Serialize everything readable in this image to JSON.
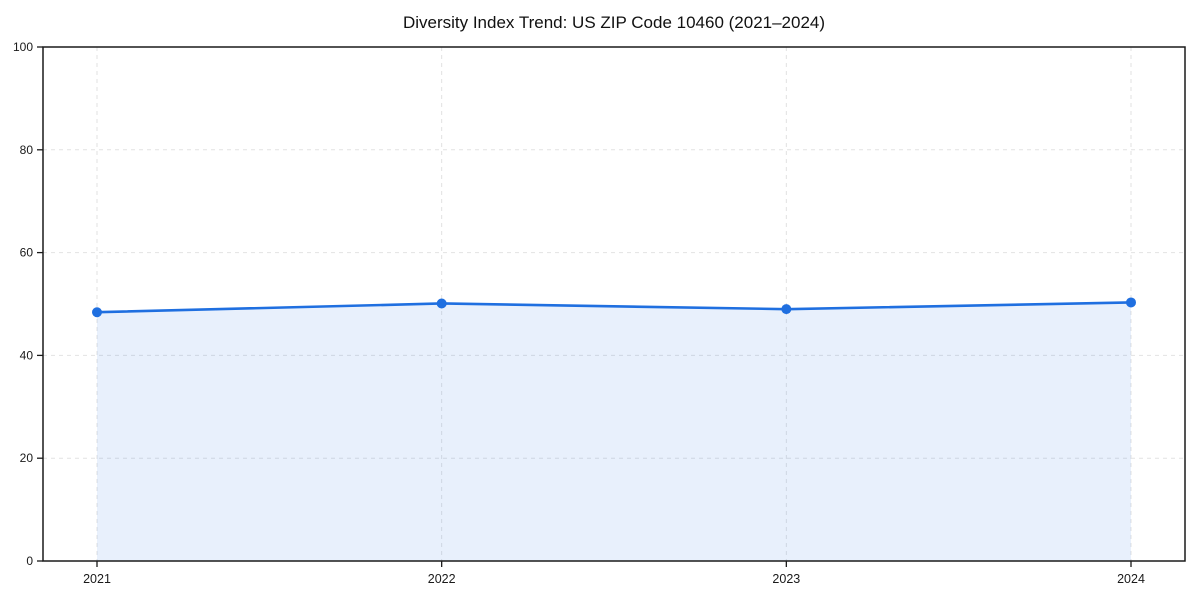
{
  "page": {
    "background": "#ffffff"
  },
  "chart_data": {
    "type": "area",
    "title": "Diversity Index Trend: US ZIP Code 10460 (2021–2024)",
    "categories": [
      "2021",
      "2022",
      "2023",
      "2024"
    ],
    "series": [
      {
        "name": "Diversity Index",
        "values": [
          48.4,
          50.1,
          49.0,
          50.3
        ]
      }
    ],
    "xlabel": "",
    "ylabel": "",
    "ylim": [
      0,
      100
    ],
    "yticks": [
      0,
      20,
      40,
      60,
      80,
      100
    ],
    "grid": "dashed",
    "legend_position": "none",
    "colors": {
      "line": "#1f6fe0",
      "marker": "#1f6fe0",
      "fill": "#1f6fe0",
      "fill_opacity": 0.1,
      "grid": "#e2e2e2",
      "spine": "#1a1a1a",
      "text": "#1a1a1a"
    }
  }
}
